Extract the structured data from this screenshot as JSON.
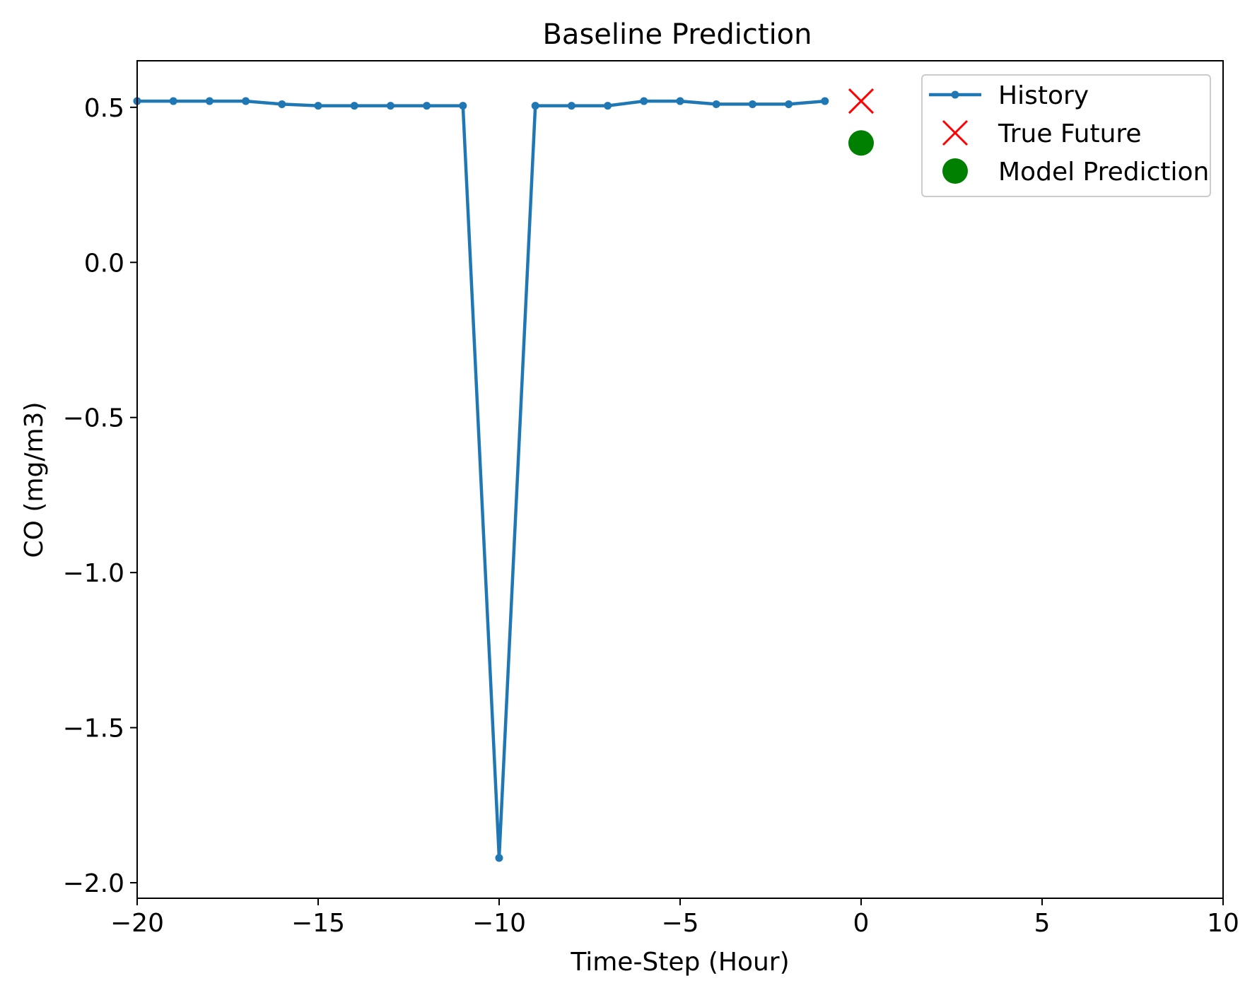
{
  "chart_data": {
    "type": "line",
    "title": "Baseline Prediction",
    "xlabel": "Time-Step (Hour)",
    "ylabel": "CO (mg/m3)",
    "xlim": [
      -20,
      10
    ],
    "ylim": [
      -2.05,
      0.65
    ],
    "xticks": [
      -20,
      -15,
      -10,
      -5,
      0,
      5,
      10
    ],
    "xtick_labels": [
      "−20",
      "−15",
      "−10",
      "−5",
      "0",
      "5",
      "10"
    ],
    "yticks": [
      0.5,
      0.0,
      -0.5,
      -1.0,
      -1.5,
      -2.0
    ],
    "ytick_labels": [
      "0.5",
      "0.0",
      "−0.5",
      "−1.0",
      "−1.5",
      "−2.0"
    ],
    "grid": false,
    "legend_position": "top-right",
    "series": [
      {
        "name": "History",
        "kind": "line-with-markers",
        "color": "#1f77b4",
        "x": [
          -20,
          -19,
          -18,
          -17,
          -16,
          -15,
          -14,
          -13,
          -12,
          -11,
          -10,
          -9,
          -8,
          -7,
          -6,
          -5,
          -4,
          -3,
          -2,
          -1
        ],
        "y": [
          0.52,
          0.52,
          0.52,
          0.52,
          0.51,
          0.505,
          0.505,
          0.505,
          0.505,
          0.505,
          -1.92,
          0.505,
          0.505,
          0.505,
          0.52,
          0.52,
          0.51,
          0.51,
          0.51,
          0.52
        ]
      },
      {
        "name": "True Future",
        "kind": "x-marker",
        "color": "#ff0000",
        "x": [
          0
        ],
        "y": [
          0.52
        ]
      },
      {
        "name": "Model Prediction",
        "kind": "circle-marker",
        "color": "#008000",
        "x": [
          0
        ],
        "y": [
          0.385
        ]
      }
    ]
  }
}
